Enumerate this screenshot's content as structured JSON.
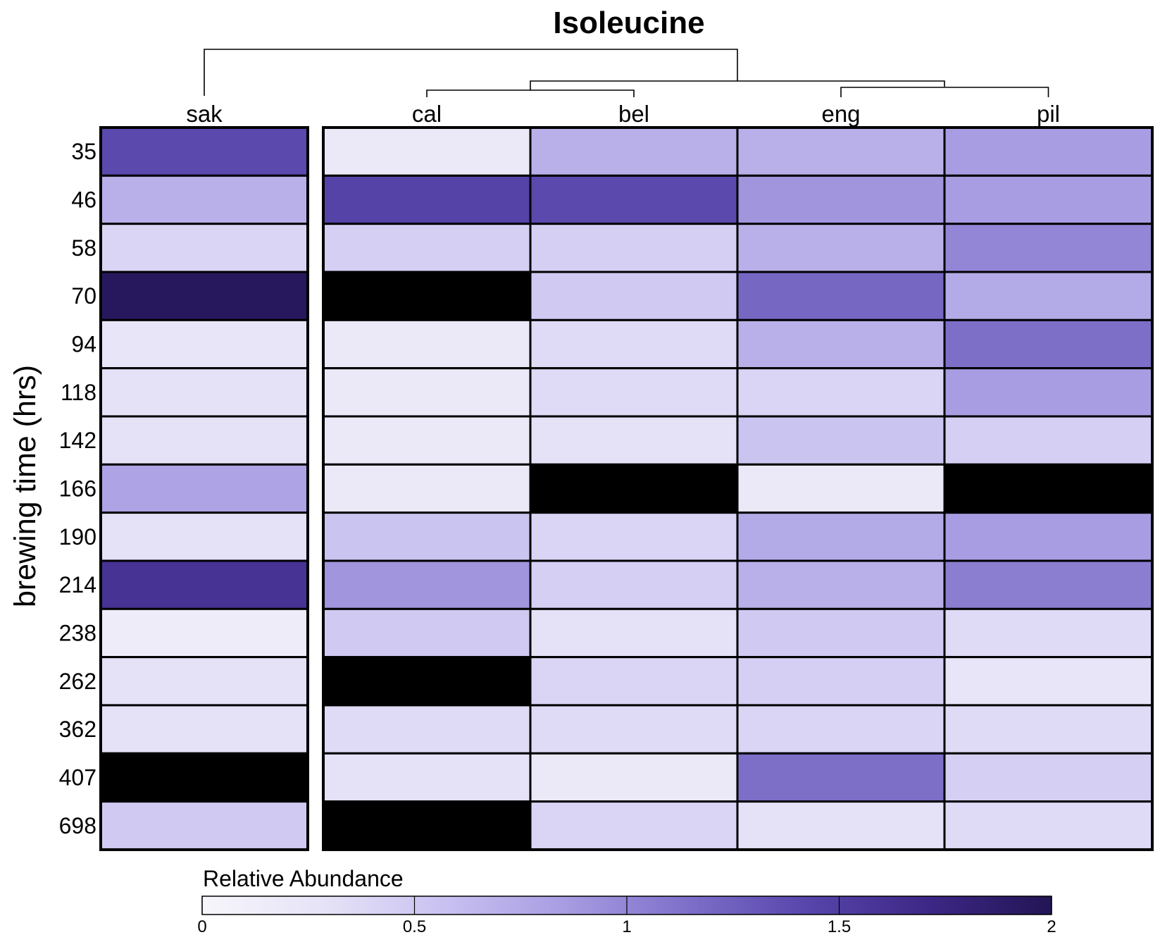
{
  "chart_data": {
    "type": "heatmap",
    "title": "Isoleucine",
    "ylabel": "brewing time (hrs)",
    "columns": [
      "sak",
      "cal",
      "bel",
      "eng",
      "pil"
    ],
    "column_groups": [
      [
        "sak"
      ],
      [
        "cal",
        "bel",
        "eng",
        "pil"
      ]
    ],
    "rows": [
      "35",
      "46",
      "58",
      "70",
      "94",
      "118",
      "142",
      "166",
      "190",
      "214",
      "238",
      "262",
      "362",
      "407",
      "698"
    ],
    "values": [
      [
        1.4,
        0.2,
        0.7,
        0.7,
        0.85
      ],
      [
        0.7,
        1.45,
        1.4,
        0.9,
        0.85
      ],
      [
        0.4,
        0.45,
        0.45,
        0.7,
        1.0
      ],
      [
        1.95,
        null,
        0.5,
        1.2,
        0.75
      ],
      [
        0.25,
        0.2,
        0.35,
        0.7,
        1.15
      ],
      [
        0.3,
        0.2,
        0.35,
        0.4,
        0.85
      ],
      [
        0.3,
        0.2,
        0.3,
        0.55,
        0.45
      ],
      [
        0.8,
        0.2,
        null,
        0.2,
        null
      ],
      [
        0.3,
        0.55,
        0.4,
        0.75,
        0.85
      ],
      [
        1.6,
        0.9,
        0.45,
        0.7,
        1.05
      ],
      [
        0.15,
        0.5,
        0.3,
        0.5,
        0.35
      ],
      [
        0.3,
        null,
        0.4,
        0.45,
        0.25
      ],
      [
        0.3,
        0.35,
        0.35,
        0.4,
        0.35
      ],
      [
        null,
        0.3,
        0.2,
        1.15,
        0.45
      ],
      [
        0.5,
        null,
        0.4,
        0.3,
        0.35
      ]
    ],
    "missing_color": "#000000",
    "colorbar": {
      "label": "Relative Abundance",
      "min": 0,
      "max": 2,
      "ticks": [
        "0",
        "0.5",
        "1",
        "1.5",
        "2"
      ],
      "tick_values": [
        0,
        0.5,
        1,
        1.5,
        2
      ],
      "colors": [
        "#f7f6fb",
        "#e6e3f7",
        "#c8c1f1",
        "#a79ce2",
        "#7e6fc9",
        "#5745ab",
        "#3d2785",
        "#221555"
      ]
    },
    "dendrogram": "sak | ((cal, bel), (eng, pil))"
  }
}
